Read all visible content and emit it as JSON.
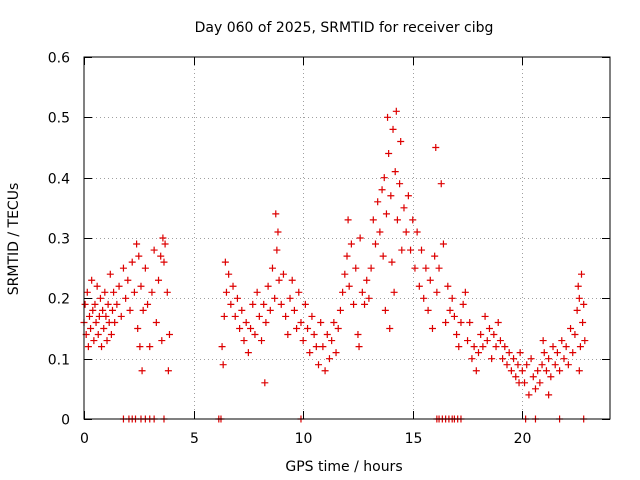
{
  "chart_data": {
    "type": "scatter",
    "title": "Day 060 of 2025, SRMTID for receiver cibg",
    "xlabel": "GPS time / hours",
    "ylabel": "SRMTID / TECUs",
    "xlim": [
      0,
      24
    ],
    "ylim": [
      0,
      0.6
    ],
    "xticks": [
      0,
      5,
      10,
      15,
      20
    ],
    "yticks": [
      0,
      0.1,
      0.2,
      0.3,
      0.4,
      0.5,
      0.6
    ],
    "xtick_labels": [
      "0",
      "5",
      "10",
      "15",
      "20"
    ],
    "ytick_labels": [
      "0",
      "0.1",
      "0.2",
      "0.3",
      "0.4",
      "0.5",
      "0.6"
    ],
    "grid": true,
    "marker": "+",
    "color": "#dd0000",
    "series": [
      {
        "name": "SRMTID",
        "points": [
          [
            0.0,
            0.16
          ],
          [
            0.05,
            0.19
          ],
          [
            0.1,
            0.14
          ],
          [
            0.15,
            0.21
          ],
          [
            0.2,
            0.12
          ],
          [
            0.25,
            0.17
          ],
          [
            0.3,
            0.15
          ],
          [
            0.35,
            0.23
          ],
          [
            0.4,
            0.18
          ],
          [
            0.45,
            0.13
          ],
          [
            0.5,
            0.19
          ],
          [
            0.55,
            0.16
          ],
          [
            0.6,
            0.22
          ],
          [
            0.65,
            0.14
          ],
          [
            0.7,
            0.17
          ],
          [
            0.75,
            0.2
          ],
          [
            0.8,
            0.12
          ],
          [
            0.85,
            0.18
          ],
          [
            0.9,
            0.15
          ],
          [
            0.95,
            0.21
          ],
          [
            1.0,
            0.17
          ],
          [
            1.05,
            0.13
          ],
          [
            1.1,
            0.19
          ],
          [
            1.15,
            0.16
          ],
          [
            1.2,
            0.24
          ],
          [
            1.25,
            0.14
          ],
          [
            1.3,
            0.18
          ],
          [
            1.35,
            0.21
          ],
          [
            1.4,
            0.16
          ],
          [
            1.5,
            0.19
          ],
          [
            1.6,
            0.22
          ],
          [
            1.7,
            0.17
          ],
          [
            1.8,
            0.25
          ],
          [
            1.9,
            0.2
          ],
          [
            2.0,
            0.23
          ],
          [
            2.1,
            0.18
          ],
          [
            2.2,
            0.26
          ],
          [
            2.3,
            0.21
          ],
          [
            2.4,
            0.29
          ],
          [
            2.45,
            0.15
          ],
          [
            2.5,
            0.27
          ],
          [
            2.55,
            0.12
          ],
          [
            2.6,
            0.22
          ],
          [
            2.65,
            0.08
          ],
          [
            2.7,
            0.18
          ],
          [
            2.8,
            0.25
          ],
          [
            2.9,
            0.19
          ],
          [
            3.0,
            0.12
          ],
          [
            3.1,
            0.21
          ],
          [
            3.2,
            0.28
          ],
          [
            3.3,
            0.16
          ],
          [
            3.4,
            0.23
          ],
          [
            3.5,
            0.27
          ],
          [
            3.55,
            0.13
          ],
          [
            3.6,
            0.3
          ],
          [
            3.65,
            0.26
          ],
          [
            3.7,
            0.29
          ],
          [
            3.8,
            0.21
          ],
          [
            3.85,
            0.08
          ],
          [
            3.9,
            0.14
          ],
          [
            6.3,
            0.12
          ],
          [
            6.35,
            0.09
          ],
          [
            6.4,
            0.17
          ],
          [
            6.45,
            0.26
          ],
          [
            6.5,
            0.21
          ],
          [
            6.6,
            0.24
          ],
          [
            6.7,
            0.19
          ],
          [
            6.8,
            0.22
          ],
          [
            6.9,
            0.17
          ],
          [
            7.0,
            0.2
          ],
          [
            7.1,
            0.15
          ],
          [
            7.2,
            0.18
          ],
          [
            7.3,
            0.13
          ],
          [
            7.4,
            0.16
          ],
          [
            7.5,
            0.11
          ],
          [
            7.6,
            0.15
          ],
          [
            7.7,
            0.19
          ],
          [
            7.8,
            0.14
          ],
          [
            7.9,
            0.21
          ],
          [
            8.0,
            0.17
          ],
          [
            8.1,
            0.13
          ],
          [
            8.2,
            0.19
          ],
          [
            8.25,
            0.06
          ],
          [
            8.3,
            0.16
          ],
          [
            8.4,
            0.22
          ],
          [
            8.5,
            0.18
          ],
          [
            8.6,
            0.25
          ],
          [
            8.7,
            0.2
          ],
          [
            8.75,
            0.34
          ],
          [
            8.8,
            0.28
          ],
          [
            8.85,
            0.31
          ],
          [
            8.9,
            0.23
          ],
          [
            9.0,
            0.19
          ],
          [
            9.1,
            0.24
          ],
          [
            9.2,
            0.17
          ],
          [
            9.3,
            0.14
          ],
          [
            9.4,
            0.2
          ],
          [
            9.5,
            0.23
          ],
          [
            9.6,
            0.18
          ],
          [
            9.7,
            0.15
          ],
          [
            9.8,
            0.21
          ],
          [
            9.9,
            0.16
          ],
          [
            10.0,
            0.13
          ],
          [
            10.1,
            0.19
          ],
          [
            10.2,
            0.15
          ],
          [
            10.3,
            0.11
          ],
          [
            10.4,
            0.17
          ],
          [
            10.5,
            0.14
          ],
          [
            10.6,
            0.12
          ],
          [
            10.7,
            0.09
          ],
          [
            10.8,
            0.16
          ],
          [
            10.9,
            0.12
          ],
          [
            11.0,
            0.08
          ],
          [
            11.1,
            0.14
          ],
          [
            11.2,
            0.1
          ],
          [
            11.3,
            0.13
          ],
          [
            11.4,
            0.16
          ],
          [
            11.5,
            0.11
          ],
          [
            11.6,
            0.15
          ],
          [
            11.7,
            0.18
          ],
          [
            11.8,
            0.21
          ],
          [
            11.9,
            0.24
          ],
          [
            12.0,
            0.27
          ],
          [
            12.05,
            0.33
          ],
          [
            12.1,
            0.22
          ],
          [
            12.2,
            0.29
          ],
          [
            12.3,
            0.19
          ],
          [
            12.4,
            0.25
          ],
          [
            12.5,
            0.14
          ],
          [
            12.55,
            0.12
          ],
          [
            12.6,
            0.3
          ],
          [
            12.7,
            0.21
          ],
          [
            12.8,
            0.19
          ],
          [
            12.9,
            0.23
          ],
          [
            13.0,
            0.2
          ],
          [
            13.1,
            0.25
          ],
          [
            13.2,
            0.33
          ],
          [
            13.3,
            0.29
          ],
          [
            13.4,
            0.36
          ],
          [
            13.5,
            0.31
          ],
          [
            13.6,
            0.38
          ],
          [
            13.65,
            0.27
          ],
          [
            13.7,
            0.4
          ],
          [
            13.75,
            0.18
          ],
          [
            13.8,
            0.34
          ],
          [
            13.85,
            0.5
          ],
          [
            13.9,
            0.44
          ],
          [
            13.95,
            0.15
          ],
          [
            14.0,
            0.37
          ],
          [
            14.05,
            0.26
          ],
          [
            14.1,
            0.48
          ],
          [
            14.15,
            0.21
          ],
          [
            14.2,
            0.41
          ],
          [
            14.25,
            0.51
          ],
          [
            14.3,
            0.33
          ],
          [
            14.4,
            0.39
          ],
          [
            14.45,
            0.46
          ],
          [
            14.5,
            0.28
          ],
          [
            14.6,
            0.35
          ],
          [
            14.7,
            0.31
          ],
          [
            14.8,
            0.37
          ],
          [
            14.9,
            0.28
          ],
          [
            15.0,
            0.33
          ],
          [
            15.1,
            0.25
          ],
          [
            15.2,
            0.31
          ],
          [
            15.3,
            0.22
          ],
          [
            15.4,
            0.28
          ],
          [
            15.5,
            0.2
          ],
          [
            15.6,
            0.25
          ],
          [
            15.7,
            0.18
          ],
          [
            15.8,
            0.23
          ],
          [
            15.9,
            0.15
          ],
          [
            16.0,
            0.27
          ],
          [
            16.05,
            0.45
          ],
          [
            16.1,
            0.21
          ],
          [
            16.2,
            0.25
          ],
          [
            16.3,
            0.39
          ],
          [
            16.4,
            0.29
          ],
          [
            16.5,
            0.16
          ],
          [
            16.6,
            0.22
          ],
          [
            16.7,
            0.18
          ],
          [
            16.8,
            0.2
          ],
          [
            16.9,
            0.17
          ],
          [
            17.0,
            0.14
          ],
          [
            17.1,
            0.12
          ],
          [
            17.2,
            0.16
          ],
          [
            17.3,
            0.19
          ],
          [
            17.4,
            0.21
          ],
          [
            17.5,
            0.13
          ],
          [
            17.6,
            0.16
          ],
          [
            17.7,
            0.1
          ],
          [
            17.8,
            0.12
          ],
          [
            17.9,
            0.08
          ],
          [
            18.0,
            0.11
          ],
          [
            18.1,
            0.14
          ],
          [
            18.2,
            0.12
          ],
          [
            18.3,
            0.17
          ],
          [
            18.4,
            0.13
          ],
          [
            18.5,
            0.15
          ],
          [
            18.6,
            0.1
          ],
          [
            18.7,
            0.14
          ],
          [
            18.8,
            0.12
          ],
          [
            18.9,
            0.16
          ],
          [
            19.0,
            0.13
          ],
          [
            19.1,
            0.1
          ],
          [
            19.2,
            0.12
          ],
          [
            19.3,
            0.09
          ],
          [
            19.4,
            0.11
          ],
          [
            19.5,
            0.08
          ],
          [
            19.6,
            0.1
          ],
          [
            19.7,
            0.07
          ],
          [
            19.8,
            0.09
          ],
          [
            19.9,
            0.11
          ],
          [
            20.0,
            0.08
          ],
          [
            20.1,
            0.06
          ],
          [
            20.2,
            0.09
          ],
          [
            20.3,
            0.04
          ],
          [
            20.4,
            0.1
          ],
          [
            20.5,
            0.07
          ],
          [
            20.6,
            0.05
          ],
          [
            20.7,
            0.08
          ],
          [
            20.8,
            0.06
          ],
          [
            20.9,
            0.09
          ],
          [
            21.0,
            0.11
          ],
          [
            21.1,
            0.08
          ],
          [
            21.2,
            0.1
          ],
          [
            21.3,
            0.07
          ],
          [
            21.4,
            0.12
          ],
          [
            21.5,
            0.09
          ],
          [
            21.6,
            0.11
          ],
          [
            21.7,
            0.08
          ],
          [
            21.8,
            0.13
          ],
          [
            21.9,
            0.1
          ],
          [
            22.0,
            0.12
          ],
          [
            22.1,
            0.09
          ],
          [
            22.2,
            0.15
          ],
          [
            22.3,
            0.11
          ],
          [
            22.4,
            0.14
          ],
          [
            22.5,
            0.18
          ],
          [
            22.55,
            0.22
          ],
          [
            22.6,
            0.2
          ],
          [
            22.65,
            0.12
          ],
          [
            22.7,
            0.24
          ],
          [
            22.75,
            0.16
          ],
          [
            22.8,
            0.19
          ],
          [
            22.85,
            0.13
          ],
          [
            22.6,
            0.08
          ],
          [
            21.2,
            0.04
          ],
          [
            20.95,
            0.13
          ],
          [
            19.85,
            0.06
          ],
          [
            1.8,
            0.0
          ],
          [
            2.05,
            0.0
          ],
          [
            2.2,
            0.0
          ],
          [
            2.35,
            0.0
          ],
          [
            2.6,
            0.0
          ],
          [
            2.8,
            0.0
          ],
          [
            3.0,
            0.0
          ],
          [
            3.2,
            0.0
          ],
          [
            3.65,
            0.0
          ],
          [
            6.15,
            0.0
          ],
          [
            6.25,
            0.0
          ],
          [
            9.9,
            0.0
          ],
          [
            16.1,
            0.0
          ],
          [
            16.2,
            0.0
          ],
          [
            16.35,
            0.0
          ],
          [
            16.5,
            0.0
          ],
          [
            16.65,
            0.0
          ],
          [
            16.8,
            0.0
          ],
          [
            16.9,
            0.0
          ],
          [
            17.05,
            0.0
          ],
          [
            17.2,
            0.0
          ],
          [
            20.15,
            0.0
          ],
          [
            20.6,
            0.0
          ],
          [
            21.7,
            0.0
          ],
          [
            22.8,
            0.0
          ]
        ]
      }
    ]
  }
}
